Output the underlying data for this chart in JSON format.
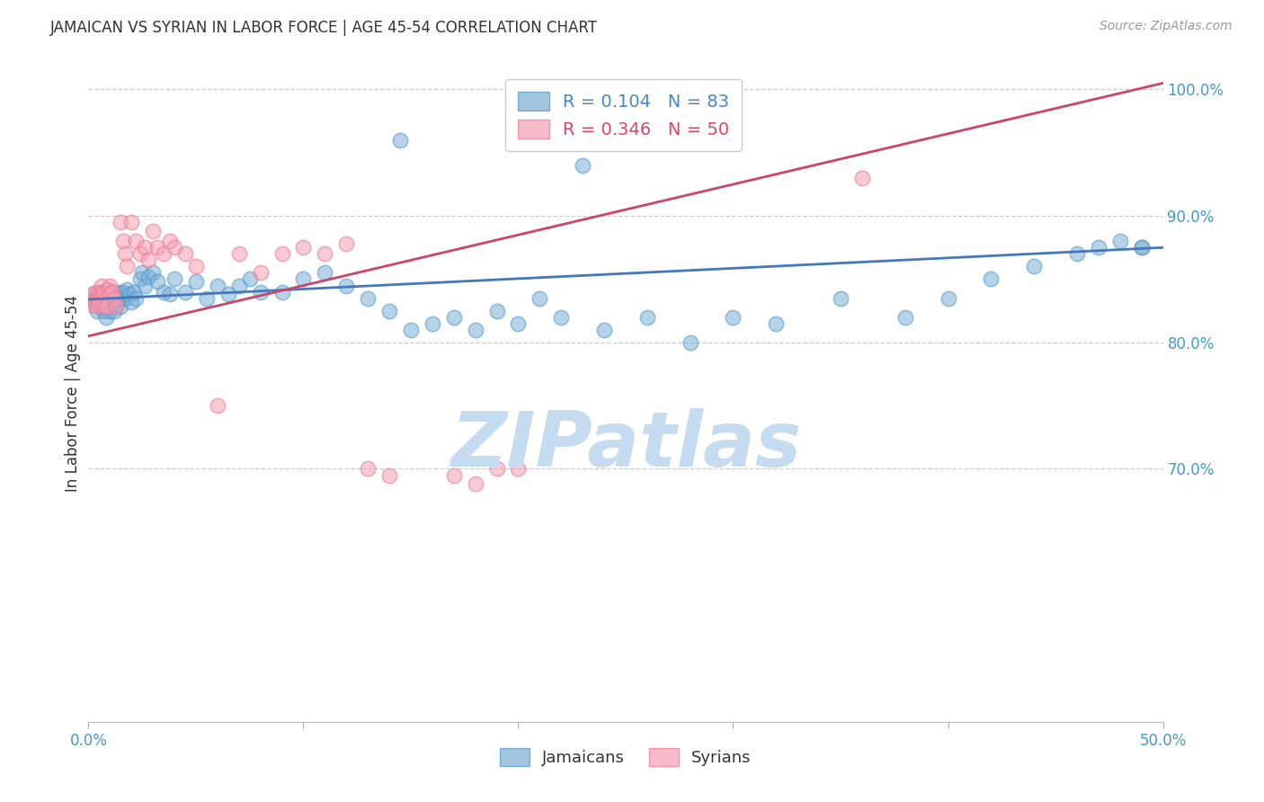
{
  "title": "JAMAICAN VS SYRIAN IN LABOR FORCE | AGE 45-54 CORRELATION CHART",
  "source": "Source: ZipAtlas.com",
  "ylabel": "In Labor Force | Age 45-54",
  "xlim": [
    0.0,
    0.5
  ],
  "ylim": [
    0.5,
    1.02
  ],
  "ytick_positions": [
    0.7,
    0.8,
    0.9,
    1.0
  ],
  "ytick_labels": [
    "70.0%",
    "80.0%",
    "90.0%",
    "100.0%"
  ],
  "blue_color": "#7BAFD4",
  "pink_color": "#F4A0B0",
  "blue_line_color": "#4477BB",
  "pink_line_color": "#CC4466",
  "blue_dot_edge": "#5599CC",
  "pink_dot_edge": "#EE7799",
  "legend_blue_label": "R = 0.104   N = 83",
  "legend_pink_label": "R = 0.346   N = 50",
  "legend_blue_color": "#4488CC",
  "legend_pink_color": "#DD4466",
  "watermark": "ZIPatlas",
  "watermark_color": "#C5DCF0",
  "tick_label_color": "#4499CC",
  "title_color": "#333333",
  "source_color": "#999999",
  "ylabel_color": "#333333",
  "blue_x": [
    0.002,
    0.003,
    0.004,
    0.004,
    0.005,
    0.005,
    0.006,
    0.006,
    0.007,
    0.007,
    0.007,
    0.008,
    0.008,
    0.008,
    0.009,
    0.009,
    0.01,
    0.01,
    0.01,
    0.011,
    0.011,
    0.012,
    0.012,
    0.013,
    0.013,
    0.014,
    0.015,
    0.015,
    0.016,
    0.017,
    0.018,
    0.019,
    0.02,
    0.021,
    0.022,
    0.024,
    0.025,
    0.026,
    0.028,
    0.03,
    0.032,
    0.035,
    0.038,
    0.04,
    0.045,
    0.05,
    0.055,
    0.06,
    0.065,
    0.07,
    0.075,
    0.08,
    0.09,
    0.1,
    0.11,
    0.12,
    0.13,
    0.14,
    0.15,
    0.16,
    0.17,
    0.18,
    0.19,
    0.2,
    0.21,
    0.22,
    0.24,
    0.26,
    0.28,
    0.3,
    0.32,
    0.35,
    0.38,
    0.4,
    0.42,
    0.44,
    0.46,
    0.47,
    0.48,
    0.49,
    0.49,
    0.145,
    0.23
  ],
  "blue_y": [
    0.835,
    0.83,
    0.825,
    0.838,
    0.832,
    0.84,
    0.828,
    0.835,
    0.833,
    0.84,
    0.825,
    0.838,
    0.83,
    0.82,
    0.835,
    0.842,
    0.83,
    0.825,
    0.838,
    0.832,
    0.84,
    0.835,
    0.825,
    0.838,
    0.83,
    0.84,
    0.835,
    0.828,
    0.84,
    0.835,
    0.842,
    0.838,
    0.832,
    0.84,
    0.835,
    0.85,
    0.855,
    0.845,
    0.852,
    0.855,
    0.848,
    0.84,
    0.838,
    0.85,
    0.84,
    0.848,
    0.835,
    0.845,
    0.838,
    0.845,
    0.85,
    0.84,
    0.84,
    0.85,
    0.855,
    0.845,
    0.835,
    0.825,
    0.81,
    0.815,
    0.82,
    0.81,
    0.825,
    0.815,
    0.835,
    0.82,
    0.81,
    0.82,
    0.8,
    0.82,
    0.815,
    0.835,
    0.82,
    0.835,
    0.85,
    0.86,
    0.87,
    0.875,
    0.88,
    0.875,
    0.875,
    0.96,
    0.94
  ],
  "pink_x": [
    0.001,
    0.002,
    0.003,
    0.003,
    0.004,
    0.004,
    0.005,
    0.005,
    0.006,
    0.006,
    0.007,
    0.007,
    0.008,
    0.008,
    0.009,
    0.01,
    0.01,
    0.011,
    0.012,
    0.013,
    0.015,
    0.016,
    0.017,
    0.018,
    0.02,
    0.022,
    0.024,
    0.026,
    0.028,
    0.03,
    0.032,
    0.035,
    0.038,
    0.04,
    0.045,
    0.05,
    0.06,
    0.07,
    0.08,
    0.09,
    0.1,
    0.11,
    0.12,
    0.13,
    0.14,
    0.17,
    0.18,
    0.19,
    0.2,
    0.36
  ],
  "pink_y": [
    0.83,
    0.838,
    0.832,
    0.84,
    0.828,
    0.835,
    0.84,
    0.832,
    0.838,
    0.845,
    0.83,
    0.84,
    0.835,
    0.828,
    0.842,
    0.838,
    0.845,
    0.84,
    0.835,
    0.828,
    0.895,
    0.88,
    0.87,
    0.86,
    0.895,
    0.88,
    0.87,
    0.875,
    0.865,
    0.888,
    0.875,
    0.87,
    0.88,
    0.875,
    0.87,
    0.86,
    0.75,
    0.87,
    0.855,
    0.87,
    0.875,
    0.87,
    0.878,
    0.7,
    0.695,
    0.695,
    0.688,
    0.7,
    0.7,
    0.93
  ],
  "blue_trend_x": [
    0.0,
    0.5
  ],
  "blue_trend_y": [
    0.834,
    0.875
  ],
  "pink_trend_x": [
    0.0,
    0.5
  ],
  "pink_trend_y": [
    0.805,
    1.005
  ]
}
